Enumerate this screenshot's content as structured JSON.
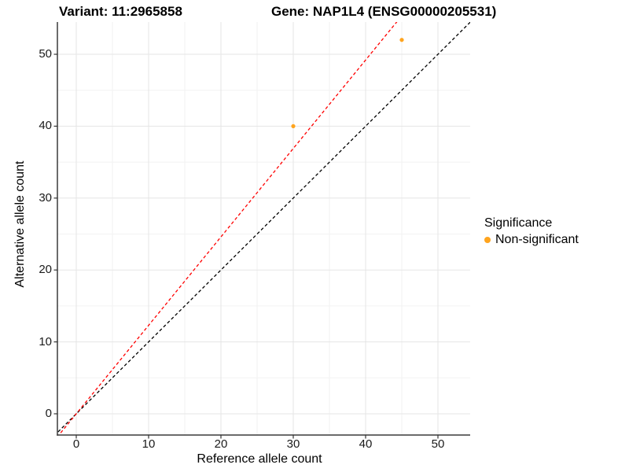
{
  "titles": {
    "variant": "Variant: 11:2965858",
    "gene": "Gene: NAP1L4 (ENSG00000205531)"
  },
  "axes": {
    "x_label": "Reference allele count",
    "y_label": "Alternative allele count"
  },
  "legend": {
    "title": "Significance",
    "items": [
      {
        "label": "Non-significant",
        "color": "#FFA41E",
        "shape": "circle"
      }
    ]
  },
  "chart_data": {
    "type": "scatter",
    "title": "Variant: 11:2965858    Gene: NAP1L4 (ENSG00000205531)",
    "xlabel": "Reference allele count",
    "ylabel": "Alternative allele count",
    "xlim": [
      -2.6,
      54.6
    ],
    "ylim": [
      -3.1,
      54.6
    ],
    "x_ticks": [
      0,
      10,
      20,
      30,
      40,
      50
    ],
    "y_ticks": [
      0,
      10,
      20,
      30,
      40,
      50
    ],
    "x_minor_ticks": [
      5,
      15,
      25,
      35,
      45
    ],
    "y_minor_ticks": [
      5,
      15,
      25,
      35,
      45
    ],
    "grid": true,
    "legend_position": "right",
    "points": [
      {
        "x": 30,
        "y": 40,
        "significance": "Non-significant",
        "color": "#FFA41E"
      },
      {
        "x": 45,
        "y": 52,
        "significance": "Non-significant",
        "color": "#FFA41E"
      }
    ],
    "lines": [
      {
        "name": "identity-line",
        "slope": 1.0,
        "intercept": 0,
        "color": "#000000",
        "style": "dashed"
      },
      {
        "name": "fit-line",
        "slope": 1.23,
        "intercept": 0,
        "color": "#FF0000",
        "style": "dashed"
      }
    ],
    "colors": {
      "grid_major": "#e5e5e5",
      "grid_minor": "#f2f2f2",
      "axis_line": "#3a3a3a",
      "tick_mark": "#333333"
    }
  }
}
